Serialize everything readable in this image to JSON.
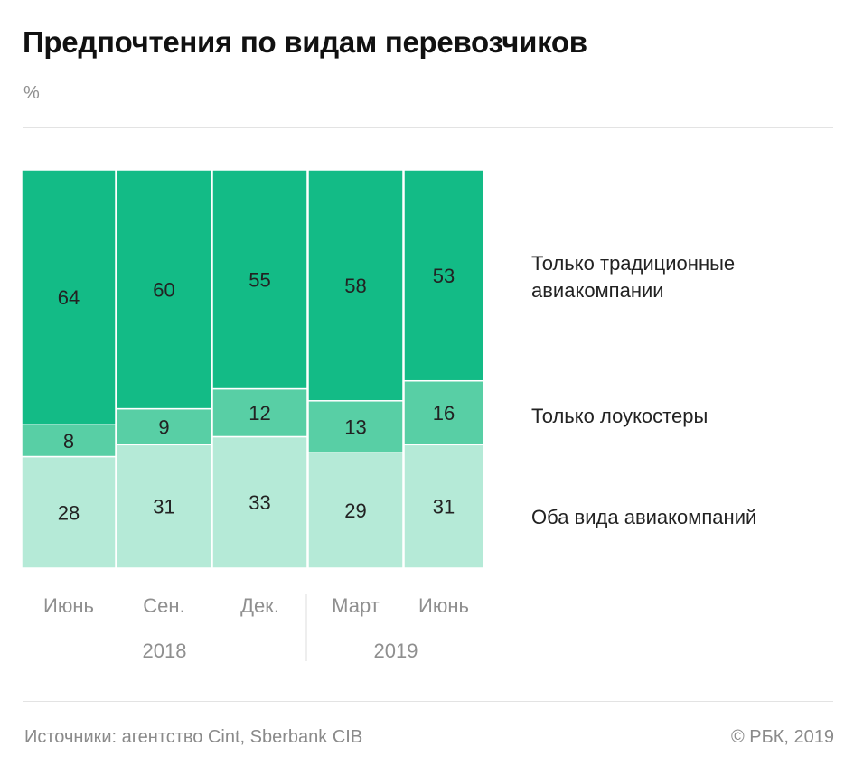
{
  "title": "Предпочтения по видам перевозчиков",
  "unit": "%",
  "legend": {
    "traditional": "Только традиционные авиакомпании",
    "lowcost": "Только лоукостеры",
    "both": "Оба вида авиакомпаний"
  },
  "colors": {
    "traditional": "#13bb86",
    "lowcost": "#58cfa5",
    "both": "#b5ead7",
    "axis_text": "#8f8f8f"
  },
  "chart_data": {
    "type": "bar",
    "stacked": true,
    "variable_width": true,
    "categories": [
      "Июнь",
      "Сен.",
      "Дек.",
      "Март",
      "Июнь"
    ],
    "year_groups": [
      {
        "year": "2018",
        "categories": [
          "Июнь",
          "Сен.",
          "Дек."
        ]
      },
      {
        "year": "2019",
        "categories": [
          "Март",
          "Июнь"
        ]
      }
    ],
    "series": [
      {
        "name": "Оба вида авиакомпаний",
        "values": [
          28,
          31,
          33,
          29,
          31
        ]
      },
      {
        "name": "Только лоукостеры",
        "values": [
          8,
          9,
          12,
          13,
          16
        ]
      },
      {
        "name": "Только традиционные авиакомпании",
        "values": [
          64,
          60,
          55,
          58,
          53
        ]
      }
    ],
    "ylim": [
      0,
      100
    ],
    "grid": false,
    "legend_position": "right"
  },
  "footer": {
    "source": "Источники: агентство Cint, Sberbank CIB",
    "copyright": "© РБК, 2019"
  }
}
